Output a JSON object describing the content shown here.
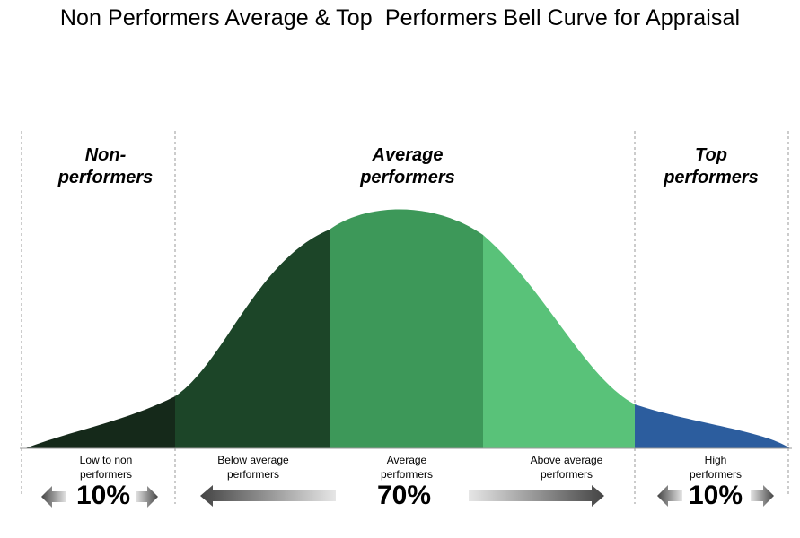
{
  "title": "Non Performers Average & Top  Performers Bell Curve for Appraisal",
  "categories": {
    "non": [
      "Non-",
      "performers"
    ],
    "average": [
      "Average",
      "performers"
    ],
    "top": [
      "Top",
      "performers"
    ]
  },
  "segments": [
    {
      "label_lines": [
        "Low to non",
        "performers"
      ],
      "color": "#15291a"
    },
    {
      "label_lines": [
        "Below average",
        "performers"
      ],
      "color": "#1c4528"
    },
    {
      "label_lines": [
        "Average",
        "performers"
      ],
      "color": "#3d9859"
    },
    {
      "label_lines": [
        "Above average",
        "performers"
      ],
      "color": "#59c279"
    },
    {
      "label_lines": [
        "High",
        "performers"
      ],
      "color": "#2c5d9e"
    }
  ],
  "percentages": {
    "non": "10%",
    "average": "70%",
    "top": "10%"
  }
}
